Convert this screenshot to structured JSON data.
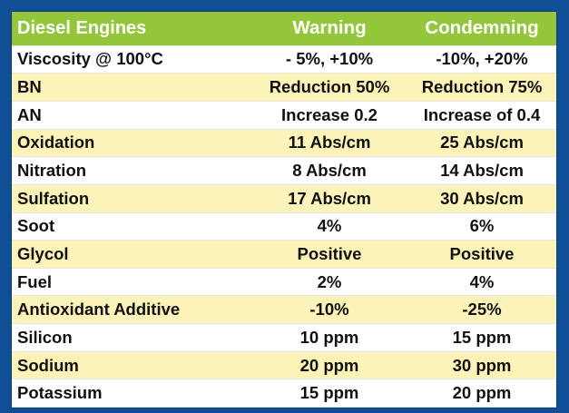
{
  "table": {
    "headers": [
      "Diesel Engines",
      "Warning",
      "Condemning"
    ],
    "rows": [
      [
        "Viscosity @ 100°C",
        "- 5%, +10%",
        "-10%, +20%"
      ],
      [
        "BN",
        "Reduction 50%",
        "Reduction 75%"
      ],
      [
        "AN",
        "Increase 0.2",
        "Increase of 0.4"
      ],
      [
        "Oxidation",
        "11 Abs/cm",
        "25 Abs/cm"
      ],
      [
        "Nitration",
        "8 Abs/cm",
        "14 Abs/cm"
      ],
      [
        "Sulfation",
        "17 Abs/cm",
        "30 Abs/cm"
      ],
      [
        "Soot",
        "4%",
        "6%"
      ],
      [
        "Glycol",
        "Positive",
        "Positive"
      ],
      [
        "Fuel",
        "2%",
        "4%"
      ],
      [
        "Antioxidant Additive",
        "-10%",
        "-25%"
      ],
      [
        "Silicon",
        "10 ppm",
        "15 ppm"
      ],
      [
        "Sodium",
        "20 ppm",
        "30 ppm"
      ],
      [
        "Potassium",
        "15 ppm",
        "20 ppm"
      ]
    ]
  },
  "colors": {
    "background": "#0f4f95",
    "header": "#93c63b",
    "row_highlight": "#fbf3b8",
    "row_plain": "#ffffff"
  }
}
